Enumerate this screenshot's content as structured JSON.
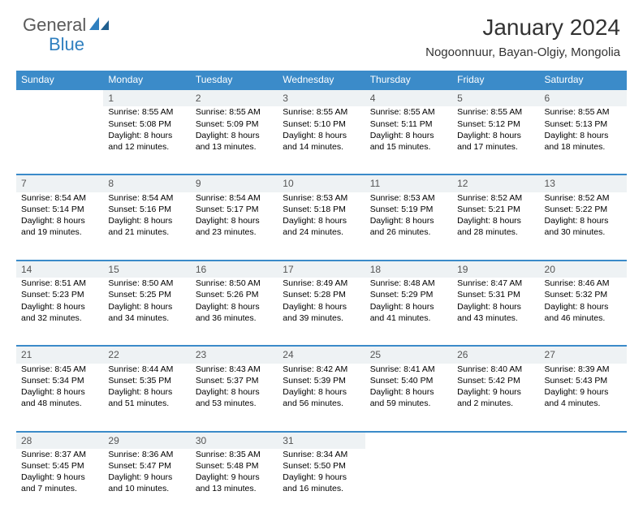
{
  "brand": {
    "part1": "General",
    "part2": "Blue"
  },
  "title": "January 2024",
  "location": "Nogoonnuur, Bayan-Olgiy, Mongolia",
  "colors": {
    "header_bg": "#3b8bc9",
    "header_text": "#ffffff",
    "daynum_bg": "#eef2f4",
    "daynum_text": "#555555",
    "rule": "#3b8bc9",
    "body_text": "#000000",
    "brand_gray": "#5a5a5a",
    "brand_blue": "#2f7fbf"
  },
  "typography": {
    "title_fontsize": 28,
    "location_fontsize": 15,
    "header_fontsize": 12,
    "daynum_fontsize": 12,
    "cell_fontsize": 10.5
  },
  "day_headers": [
    "Sunday",
    "Monday",
    "Tuesday",
    "Wednesday",
    "Thursday",
    "Friday",
    "Saturday"
  ],
  "weeks": [
    {
      "nums": [
        "",
        "1",
        "2",
        "3",
        "4",
        "5",
        "6"
      ],
      "cells": [
        {
          "empty": true
        },
        {
          "sunrise": "Sunrise: 8:55 AM",
          "sunset": "Sunset: 5:08 PM",
          "dl1": "Daylight: 8 hours",
          "dl2": "and 12 minutes."
        },
        {
          "sunrise": "Sunrise: 8:55 AM",
          "sunset": "Sunset: 5:09 PM",
          "dl1": "Daylight: 8 hours",
          "dl2": "and 13 minutes."
        },
        {
          "sunrise": "Sunrise: 8:55 AM",
          "sunset": "Sunset: 5:10 PM",
          "dl1": "Daylight: 8 hours",
          "dl2": "and 14 minutes."
        },
        {
          "sunrise": "Sunrise: 8:55 AM",
          "sunset": "Sunset: 5:11 PM",
          "dl1": "Daylight: 8 hours",
          "dl2": "and 15 minutes."
        },
        {
          "sunrise": "Sunrise: 8:55 AM",
          "sunset": "Sunset: 5:12 PM",
          "dl1": "Daylight: 8 hours",
          "dl2": "and 17 minutes."
        },
        {
          "sunrise": "Sunrise: 8:55 AM",
          "sunset": "Sunset: 5:13 PM",
          "dl1": "Daylight: 8 hours",
          "dl2": "and 18 minutes."
        }
      ]
    },
    {
      "nums": [
        "7",
        "8",
        "9",
        "10",
        "11",
        "12",
        "13"
      ],
      "cells": [
        {
          "sunrise": "Sunrise: 8:54 AM",
          "sunset": "Sunset: 5:14 PM",
          "dl1": "Daylight: 8 hours",
          "dl2": "and 19 minutes."
        },
        {
          "sunrise": "Sunrise: 8:54 AM",
          "sunset": "Sunset: 5:16 PM",
          "dl1": "Daylight: 8 hours",
          "dl2": "and 21 minutes."
        },
        {
          "sunrise": "Sunrise: 8:54 AM",
          "sunset": "Sunset: 5:17 PM",
          "dl1": "Daylight: 8 hours",
          "dl2": "and 23 minutes."
        },
        {
          "sunrise": "Sunrise: 8:53 AM",
          "sunset": "Sunset: 5:18 PM",
          "dl1": "Daylight: 8 hours",
          "dl2": "and 24 minutes."
        },
        {
          "sunrise": "Sunrise: 8:53 AM",
          "sunset": "Sunset: 5:19 PM",
          "dl1": "Daylight: 8 hours",
          "dl2": "and 26 minutes."
        },
        {
          "sunrise": "Sunrise: 8:52 AM",
          "sunset": "Sunset: 5:21 PM",
          "dl1": "Daylight: 8 hours",
          "dl2": "and 28 minutes."
        },
        {
          "sunrise": "Sunrise: 8:52 AM",
          "sunset": "Sunset: 5:22 PM",
          "dl1": "Daylight: 8 hours",
          "dl2": "and 30 minutes."
        }
      ]
    },
    {
      "nums": [
        "14",
        "15",
        "16",
        "17",
        "18",
        "19",
        "20"
      ],
      "cells": [
        {
          "sunrise": "Sunrise: 8:51 AM",
          "sunset": "Sunset: 5:23 PM",
          "dl1": "Daylight: 8 hours",
          "dl2": "and 32 minutes."
        },
        {
          "sunrise": "Sunrise: 8:50 AM",
          "sunset": "Sunset: 5:25 PM",
          "dl1": "Daylight: 8 hours",
          "dl2": "and 34 minutes."
        },
        {
          "sunrise": "Sunrise: 8:50 AM",
          "sunset": "Sunset: 5:26 PM",
          "dl1": "Daylight: 8 hours",
          "dl2": "and 36 minutes."
        },
        {
          "sunrise": "Sunrise: 8:49 AM",
          "sunset": "Sunset: 5:28 PM",
          "dl1": "Daylight: 8 hours",
          "dl2": "and 39 minutes."
        },
        {
          "sunrise": "Sunrise: 8:48 AM",
          "sunset": "Sunset: 5:29 PM",
          "dl1": "Daylight: 8 hours",
          "dl2": "and 41 minutes."
        },
        {
          "sunrise": "Sunrise: 8:47 AM",
          "sunset": "Sunset: 5:31 PM",
          "dl1": "Daylight: 8 hours",
          "dl2": "and 43 minutes."
        },
        {
          "sunrise": "Sunrise: 8:46 AM",
          "sunset": "Sunset: 5:32 PM",
          "dl1": "Daylight: 8 hours",
          "dl2": "and 46 minutes."
        }
      ]
    },
    {
      "nums": [
        "21",
        "22",
        "23",
        "24",
        "25",
        "26",
        "27"
      ],
      "cells": [
        {
          "sunrise": "Sunrise: 8:45 AM",
          "sunset": "Sunset: 5:34 PM",
          "dl1": "Daylight: 8 hours",
          "dl2": "and 48 minutes."
        },
        {
          "sunrise": "Sunrise: 8:44 AM",
          "sunset": "Sunset: 5:35 PM",
          "dl1": "Daylight: 8 hours",
          "dl2": "and 51 minutes."
        },
        {
          "sunrise": "Sunrise: 8:43 AM",
          "sunset": "Sunset: 5:37 PM",
          "dl1": "Daylight: 8 hours",
          "dl2": "and 53 minutes."
        },
        {
          "sunrise": "Sunrise: 8:42 AM",
          "sunset": "Sunset: 5:39 PM",
          "dl1": "Daylight: 8 hours",
          "dl2": "and 56 minutes."
        },
        {
          "sunrise": "Sunrise: 8:41 AM",
          "sunset": "Sunset: 5:40 PM",
          "dl1": "Daylight: 8 hours",
          "dl2": "and 59 minutes."
        },
        {
          "sunrise": "Sunrise: 8:40 AM",
          "sunset": "Sunset: 5:42 PM",
          "dl1": "Daylight: 9 hours",
          "dl2": "and 2 minutes."
        },
        {
          "sunrise": "Sunrise: 8:39 AM",
          "sunset": "Sunset: 5:43 PM",
          "dl1": "Daylight: 9 hours",
          "dl2": "and 4 minutes."
        }
      ]
    },
    {
      "nums": [
        "28",
        "29",
        "30",
        "31",
        "",
        "",
        ""
      ],
      "cells": [
        {
          "sunrise": "Sunrise: 8:37 AM",
          "sunset": "Sunset: 5:45 PM",
          "dl1": "Daylight: 9 hours",
          "dl2": "and 7 minutes."
        },
        {
          "sunrise": "Sunrise: 8:36 AM",
          "sunset": "Sunset: 5:47 PM",
          "dl1": "Daylight: 9 hours",
          "dl2": "and 10 minutes."
        },
        {
          "sunrise": "Sunrise: 8:35 AM",
          "sunset": "Sunset: 5:48 PM",
          "dl1": "Daylight: 9 hours",
          "dl2": "and 13 minutes."
        },
        {
          "sunrise": "Sunrise: 8:34 AM",
          "sunset": "Sunset: 5:50 PM",
          "dl1": "Daylight: 9 hours",
          "dl2": "and 16 minutes."
        },
        {
          "empty": true
        },
        {
          "empty": true
        },
        {
          "empty": true
        }
      ]
    }
  ]
}
